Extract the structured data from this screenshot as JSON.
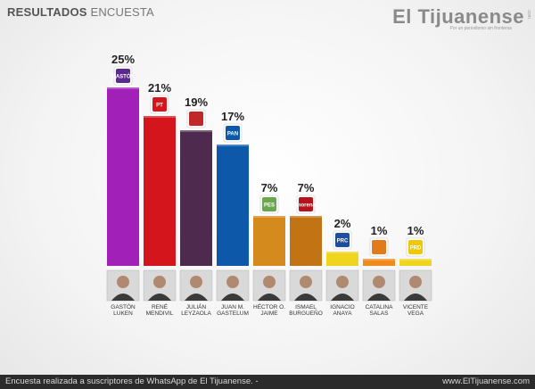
{
  "header": {
    "title_bold": "RESULTADOS",
    "title_rest": "ENCUESTA"
  },
  "brand": {
    "name": "El Tijuanense",
    "slogan": "Por un periodismo sin fronteras",
    "tag": ".com"
  },
  "footer": {
    "left": "Encuesta realizada a suscriptores de WhatsApp de El Tijuanense. -",
    "right": "www.ElTijuanense.com"
  },
  "chart_data": {
    "type": "bar",
    "title": "RESULTADOS ENCUESTA",
    "unit": "%",
    "ylim": [
      0,
      25
    ],
    "categories": [
      "GASTÓN LUKEN",
      "RENÉ MENDIVIL",
      "JULIÁN LEYZAOLA",
      "JUAN M. GASTELUM",
      "HÉCTOR O. JAIME",
      "ISMAEL BURGUEÑO",
      "IGNACIO ANAYA",
      "CATALINA SALAS",
      "VICENTE VEGA"
    ],
    "values": [
      25,
      21,
      19,
      17,
      7,
      7,
      2,
      1,
      1
    ],
    "labels": [
      "25%",
      "21%",
      "19%",
      "17%",
      "7%",
      "7%",
      "2%",
      "1%",
      "1%"
    ],
    "name_line1": [
      "GASTÓN",
      "RENÉ",
      "JULIÁN",
      "JUAN M.",
      "HÉCTOR O.",
      "ISMAEL",
      "IGNACIO",
      "CATALINA",
      "VICENTE"
    ],
    "name_line2": [
      "LUKEN",
      "MENDIVIL",
      "LEYZAOLA",
      "GASTELUM",
      "JAIME",
      "BURGUEÑO",
      "ANAYA",
      "SALAS",
      "VEGA"
    ],
    "colors": [
      "#a020b8",
      "#d4161c",
      "#4e2a4e",
      "#0d58a8",
      "#d58a1e",
      "#c27414",
      "#f0d520",
      "#ef8a1e",
      "#f0d520"
    ],
    "logos": [
      "GASTÓN",
      "PT",
      "",
      "PAN",
      "PES",
      "morena",
      "PRC",
      "",
      "PRD"
    ],
    "logo_colors": [
      "#5b2a8c",
      "#d4161c",
      "#c0282a",
      "#0d58a8",
      "#6aa84f",
      "#b5121b",
      "#1d4ea0",
      "#e07a1a",
      "#f0c800"
    ]
  }
}
